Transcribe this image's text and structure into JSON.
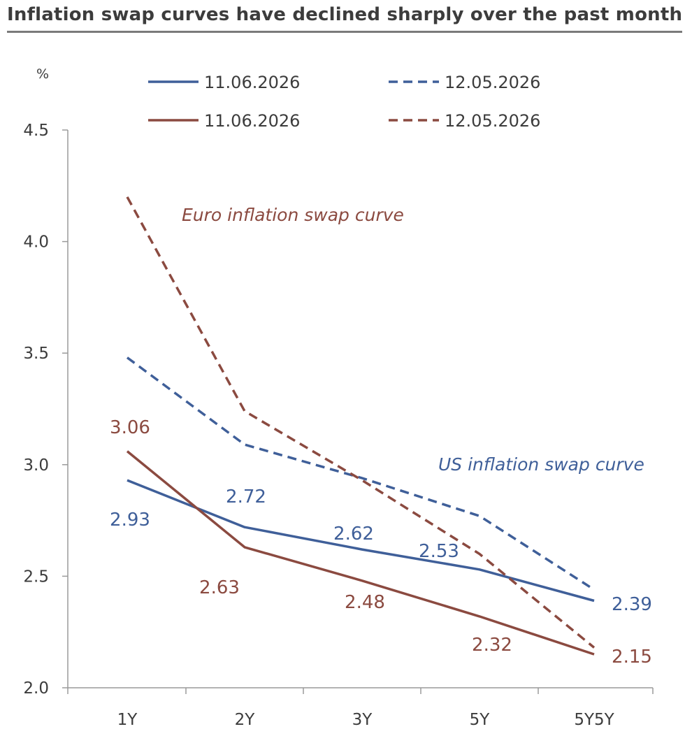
{
  "title": "Inflation swap curves have declined sharply over the past month",
  "chart_data": {
    "type": "line",
    "title": "Inflation swap curves have declined sharply over the past month",
    "ylabel": "%",
    "xlabel": "",
    "categories": [
      "1Y",
      "2Y",
      "3Y",
      "5Y",
      "5Y5Y"
    ],
    "ylim": [
      2.0,
      4.5
    ],
    "yticks": [
      "4.5",
      "4.0",
      "3.5",
      "3.0",
      "2.5",
      "2.0"
    ],
    "grid": false,
    "legend_position": "top",
    "series": [
      {
        "name": "11.06.2026",
        "group": "US",
        "style": "solid",
        "color": "#3f5f99",
        "values": [
          2.93,
          2.72,
          2.62,
          2.53,
          2.39
        ],
        "labels": [
          "2.93",
          "2.72",
          "2.62",
          "2.53",
          "2.39"
        ]
      },
      {
        "name": "12.05.2026",
        "group": "US",
        "style": "dashed",
        "color": "#3f5f99",
        "values": [
          3.48,
          3.09,
          2.94,
          2.77,
          2.44
        ]
      },
      {
        "name": "11.06.2026",
        "group": "Euro",
        "style": "solid",
        "color": "#8b4a40",
        "values": [
          3.06,
          2.63,
          2.48,
          2.32,
          2.15
        ],
        "labels": [
          "3.06",
          "2.63",
          "2.48",
          "2.32",
          "2.15"
        ]
      },
      {
        "name": "12.05.2026",
        "group": "Euro",
        "style": "dashed",
        "color": "#8b4a40",
        "values": [
          4.2,
          3.24,
          2.93,
          2.6,
          2.18
        ]
      }
    ],
    "annotations": [
      "Euro inflation swap curve",
      "US inflation swap curve"
    ]
  }
}
